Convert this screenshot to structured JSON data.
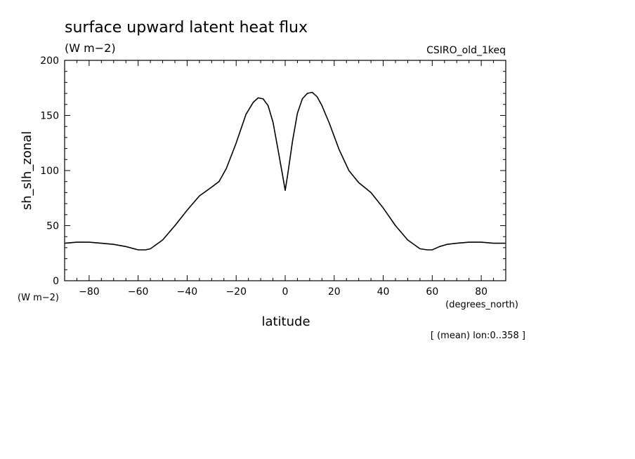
{
  "chart_data": {
    "type": "line",
    "title": "surface upward latent heat flux",
    "units_top": "(W m−2)",
    "dataset": "CSIRO_old_1keq",
    "ylabel": "sh_slh_zonal",
    "y_units": "(W m−2)",
    "xlabel": "latitude",
    "x_units": "(degrees_north)",
    "note": "[ (mean) lon:0..358 ]",
    "xlim": [
      -90,
      90
    ],
    "ylim": [
      0,
      200
    ],
    "x_ticks": [
      -80,
      -60,
      -40,
      -20,
      0,
      20,
      40,
      60,
      80
    ],
    "y_ticks": [
      0,
      50,
      100,
      150,
      200
    ],
    "x_tick_labels": [
      "−80",
      "−60",
      "−40",
      "−20",
      "0",
      "20",
      "40",
      "60",
      "80"
    ],
    "y_tick_labels": [
      "0",
      "50",
      "100",
      "150",
      "200"
    ],
    "grid": false,
    "series": [
      {
        "x": [
          -90,
          -85,
          -80,
          -75,
          -70,
          -65,
          -60,
          -57,
          -55,
          -50,
          -45,
          -40,
          -35,
          -30,
          -27,
          -24,
          -20,
          -16,
          -13,
          -11,
          -9,
          -7,
          -5,
          -3,
          -1,
          0,
          1,
          3,
          5,
          7,
          9,
          11,
          13,
          15,
          18,
          22,
          26,
          30,
          35,
          40,
          45,
          50,
          55,
          58,
          60,
          63,
          66,
          70,
          75,
          80,
          85,
          90
        ],
        "y": [
          34,
          35,
          35,
          34,
          33,
          31,
          28,
          28,
          29,
          37,
          50,
          64,
          77,
          85,
          90,
          102,
          125,
          151,
          162,
          166,
          165,
          159,
          144,
          120,
          95,
          82,
          96,
          127,
          152,
          165,
          170,
          171,
          167,
          159,
          143,
          119,
          100,
          89,
          80,
          66,
          50,
          37,
          29,
          28,
          28,
          31,
          33,
          34,
          35,
          35,
          34,
          34
        ]
      }
    ]
  }
}
